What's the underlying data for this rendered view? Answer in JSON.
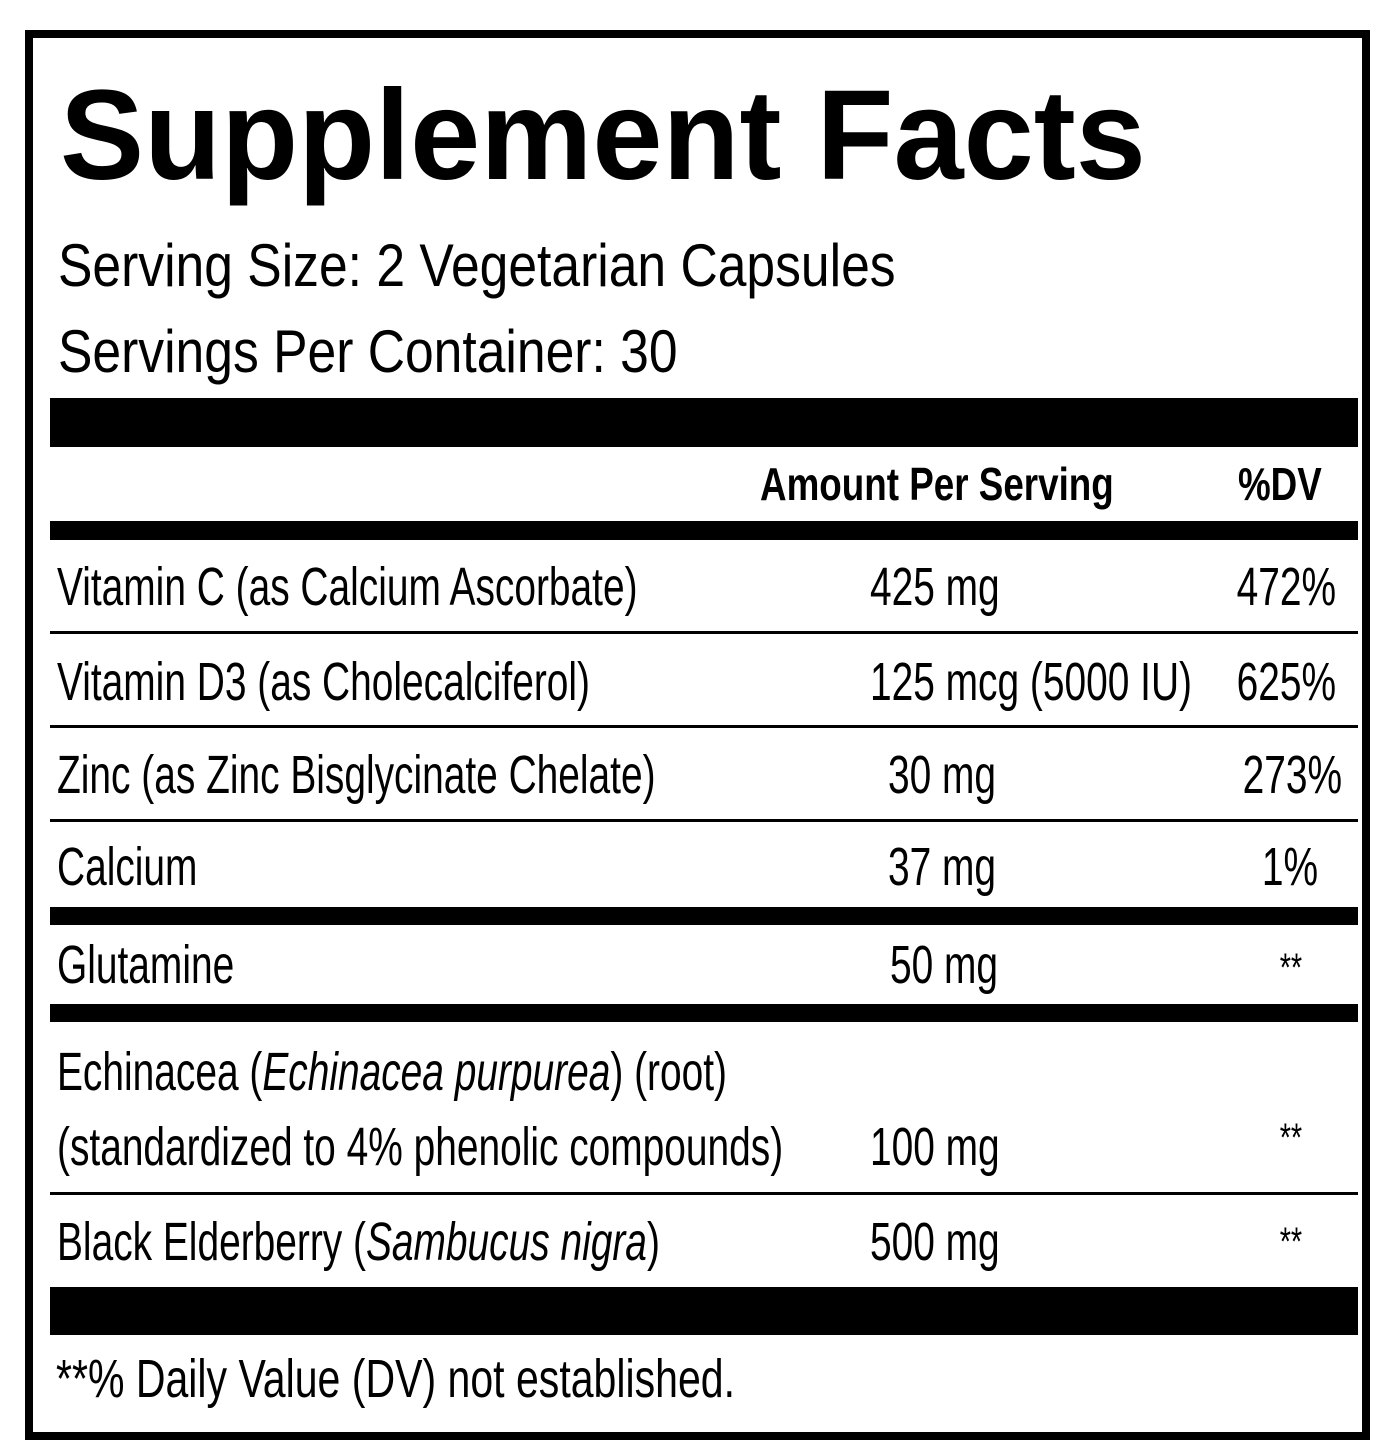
{
  "title": "Supplement Facts",
  "serving_size": "Serving Size: 2 Vegetarian Capsules",
  "servings_per_container": "Servings Per Container: 30",
  "header": {
    "amount": "Amount Per Serving",
    "dv": "%DV"
  },
  "rows": [
    {
      "name": "Vitamin C (as Calcium Ascorbate)",
      "amount": "425 mg",
      "dv": "472%"
    },
    {
      "name": "Vitamin D3 (as Cholecalciferol)",
      "amount": "125 mcg (5000 IU)",
      "dv": "625%"
    },
    {
      "name": "Zinc (as Zinc Bisglycinate Chelate)",
      "amount": "30 mg",
      "dv": "273%"
    },
    {
      "name": "Calcium",
      "amount": "37 mg",
      "dv": "1%"
    },
    {
      "name": "Glutamine",
      "amount": "50 mg",
      "dv": "**"
    },
    {
      "name_pre": "Echinacea (",
      "name_italic": "Echinacea purpurea",
      "name_post": ") (root)",
      "name_line2": "(standardized to 4% phenolic compounds)",
      "amount": "100 mg",
      "dv": "**"
    },
    {
      "name_pre": "Black Elderberry (",
      "name_italic": "Sambucus nigra",
      "name_post": ")",
      "amount": "500 mg",
      "dv": "**"
    }
  ],
  "footnote": "**% Daily Value (DV) not established."
}
